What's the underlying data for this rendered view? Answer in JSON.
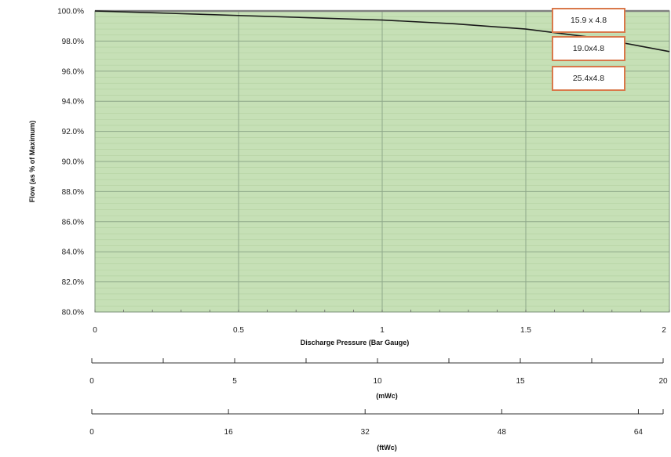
{
  "chart_data": {
    "type": "line",
    "title": "",
    "xlabel": "Discharge Pressure (Bar Gauge)",
    "ylabel": "Flow (as % of Maximum)",
    "xlim": [
      0,
      2
    ],
    "ylim": [
      80,
      100
    ],
    "x_ticks": [
      "0",
      "0.5",
      "1",
      "1.5",
      "2"
    ],
    "y_ticks": [
      "80.0%",
      "82.0%",
      "84.0%",
      "86.0%",
      "88.0%",
      "90.0%",
      "92.0%",
      "94.0%",
      "96.0%",
      "98.0%",
      "100.0%"
    ],
    "grid": true,
    "plot_background": "#c6e0b6",
    "series": [
      {
        "name": "15.9 x 4.8",
        "color": "#808080",
        "x": [
          0,
          0.5,
          1,
          1.5,
          2
        ],
        "y": [
          100.0,
          100.0,
          100.0,
          100.0,
          100.0
        ]
      },
      {
        "name": "19.0x4.8",
        "color": "#808080",
        "x": [
          0,
          0.5,
          1,
          1.5,
          2
        ],
        "y": [
          100.0,
          100.0,
          100.0,
          100.0,
          100.0
        ]
      },
      {
        "name": "25.4x4.8",
        "color": "#1a1a1a",
        "x": [
          0,
          0.25,
          0.5,
          0.75,
          1.0,
          1.25,
          1.5,
          1.75,
          2.0
        ],
        "y": [
          100.0,
          99.85,
          99.7,
          99.55,
          99.4,
          99.15,
          98.8,
          98.2,
          97.3
        ]
      }
    ],
    "legend": [
      "15.9 x 4.8",
      "19.0x4.8",
      "25.4x4.8"
    ],
    "legend_position": "top-right",
    "secondary_axes": [
      {
        "unit_label": "(mWc)",
        "range": [
          0,
          20
        ],
        "ticks": [
          "0",
          "5",
          "10",
          "15",
          "20"
        ],
        "labeled_values": [
          0,
          5,
          10,
          15,
          20
        ],
        "tick_marks": [
          0,
          2.5,
          5,
          7.5,
          10,
          12.5,
          15,
          17.5,
          20
        ]
      },
      {
        "unit_label": "(ftWc)",
        "range": [
          0,
          66.9
        ],
        "ticks": [
          "0",
          "16",
          "32",
          "48",
          "64"
        ],
        "labeled_values": [
          0,
          16,
          32,
          48,
          64
        ],
        "tick_marks": [
          0,
          16,
          32,
          48,
          64,
          66.9
        ]
      }
    ]
  }
}
